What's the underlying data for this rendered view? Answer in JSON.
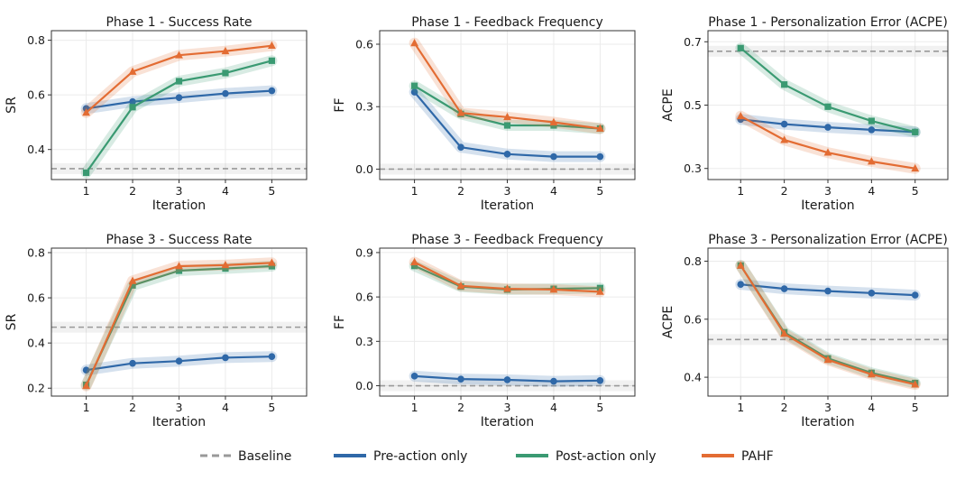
{
  "colors": {
    "baseline": "#999999",
    "pre": "#2f68a8",
    "post": "#3a9a72",
    "pahf": "#e36c33"
  },
  "legend": {
    "baseline": "Baseline",
    "pre": "Pre-action only",
    "post": "Post-action only",
    "pahf": "PAHF"
  },
  "chart_data": [
    {
      "type": "line",
      "title": "Phase 1 - Success Rate",
      "xlabel": "Iteration",
      "ylabel": "SR",
      "x": [
        1,
        2,
        3,
        4,
        5
      ],
      "xlim": [
        0.25,
        5.75
      ],
      "ylim": [
        0.29,
        0.835
      ],
      "yticks": [
        0.4,
        0.6,
        0.8
      ],
      "ytick_labels": [
        "0.4",
        "0.6",
        "0.8"
      ],
      "baseline": 0.33,
      "series": [
        {
          "name": "Pre-action only",
          "marker": "circle",
          "values": [
            0.55,
            0.575,
            0.59,
            0.605,
            0.615
          ]
        },
        {
          "name": "Post-action only",
          "marker": "square",
          "values": [
            0.315,
            0.555,
            0.65,
            0.68,
            0.725
          ]
        },
        {
          "name": "PAHF",
          "marker": "triangle",
          "values": [
            0.535,
            0.685,
            0.745,
            0.76,
            0.78
          ]
        }
      ]
    },
    {
      "type": "line",
      "title": "Phase 1 - Feedback Frequency",
      "xlabel": "Iteration",
      "ylabel": "FF",
      "x": [
        1,
        2,
        3,
        4,
        5
      ],
      "xlim": [
        0.25,
        5.75
      ],
      "ylim": [
        -0.05,
        0.665
      ],
      "yticks": [
        0.0,
        0.3,
        0.6
      ],
      "ytick_labels": [
        "0.0",
        "0.3",
        "0.6"
      ],
      "baseline": 0.0,
      "series": [
        {
          "name": "Pre-action only",
          "marker": "circle",
          "values": [
            0.37,
            0.105,
            0.072,
            0.06,
            0.06
          ]
        },
        {
          "name": "Post-action only",
          "marker": "square",
          "values": [
            0.4,
            0.265,
            0.21,
            0.21,
            0.195
          ]
        },
        {
          "name": "PAHF",
          "marker": "triangle",
          "values": [
            0.605,
            0.27,
            0.25,
            0.225,
            0.195
          ]
        }
      ]
    },
    {
      "type": "line",
      "title": "Phase 1 - Personalization Error (ACPE)",
      "xlabel": "Iteration",
      "ylabel": "ACPE",
      "x": [
        1,
        2,
        3,
        4,
        5
      ],
      "xlim": [
        0.25,
        5.75
      ],
      "ylim": [
        0.265,
        0.735
      ],
      "yticks": [
        0.3,
        0.5,
        0.7
      ],
      "ytick_labels": [
        "0.3",
        "0.5",
        "0.7"
      ],
      "baseline": 0.67,
      "series": [
        {
          "name": "Pre-action only",
          "marker": "circle",
          "values": [
            0.455,
            0.44,
            0.43,
            0.422,
            0.415
          ]
        },
        {
          "name": "Post-action only",
          "marker": "square",
          "values": [
            0.68,
            0.565,
            0.495,
            0.45,
            0.415
          ]
        },
        {
          "name": "PAHF",
          "marker": "triangle",
          "values": [
            0.465,
            0.39,
            0.35,
            0.322,
            0.3
          ]
        }
      ]
    },
    {
      "type": "line",
      "title": "Phase 3 - Success Rate",
      "xlabel": "Iteration",
      "ylabel": "SR",
      "x": [
        1,
        2,
        3,
        4,
        5
      ],
      "xlim": [
        0.25,
        5.75
      ],
      "ylim": [
        0.165,
        0.82
      ],
      "yticks": [
        0.2,
        0.4,
        0.6,
        0.8
      ],
      "ytick_labels": [
        "0.2",
        "0.4",
        "0.6",
        "0.8"
      ],
      "baseline": 0.47,
      "series": [
        {
          "name": "Pre-action only",
          "marker": "circle",
          "values": [
            0.28,
            0.31,
            0.32,
            0.335,
            0.34
          ]
        },
        {
          "name": "Post-action only",
          "marker": "square",
          "values": [
            0.215,
            0.655,
            0.72,
            0.73,
            0.74
          ]
        },
        {
          "name": "PAHF",
          "marker": "triangle",
          "values": [
            0.21,
            0.675,
            0.74,
            0.745,
            0.755
          ]
        }
      ]
    },
    {
      "type": "line",
      "title": "Phase 3 - Feedback Frequency",
      "xlabel": "Iteration",
      "ylabel": "FF",
      "x": [
        1,
        2,
        3,
        4,
        5
      ],
      "xlim": [
        0.25,
        5.75
      ],
      "ylim": [
        -0.07,
        0.93
      ],
      "yticks": [
        0.0,
        0.3,
        0.6,
        0.9
      ],
      "ytick_labels": [
        "0.0",
        "0.3",
        "0.6",
        "0.9"
      ],
      "baseline": 0.0,
      "series": [
        {
          "name": "Pre-action only",
          "marker": "circle",
          "values": [
            0.065,
            0.045,
            0.04,
            0.03,
            0.035
          ]
        },
        {
          "name": "Post-action only",
          "marker": "square",
          "values": [
            0.81,
            0.67,
            0.65,
            0.655,
            0.66
          ]
        },
        {
          "name": "PAHF",
          "marker": "triangle",
          "values": [
            0.835,
            0.675,
            0.655,
            0.65,
            0.635
          ]
        }
      ]
    },
    {
      "type": "line",
      "title": "Phase 3 - Personalization Error (ACPE)",
      "xlabel": "Iteration",
      "ylabel": "ACPE",
      "x": [
        1,
        2,
        3,
        4,
        5
      ],
      "xlim": [
        0.25,
        5.75
      ],
      "ylim": [
        0.335,
        0.845
      ],
      "yticks": [
        0.4,
        0.6,
        0.8
      ],
      "ytick_labels": [
        "0.4",
        "0.6",
        "0.8"
      ],
      "baseline": 0.53,
      "series": [
        {
          "name": "Pre-action only",
          "marker": "circle",
          "values": [
            0.72,
            0.705,
            0.697,
            0.69,
            0.683
          ]
        },
        {
          "name": "Post-action only",
          "marker": "square",
          "values": [
            0.785,
            0.555,
            0.465,
            0.415,
            0.38
          ]
        },
        {
          "name": "PAHF",
          "marker": "triangle",
          "values": [
            0.785,
            0.55,
            0.46,
            0.41,
            0.375
          ]
        }
      ]
    }
  ]
}
